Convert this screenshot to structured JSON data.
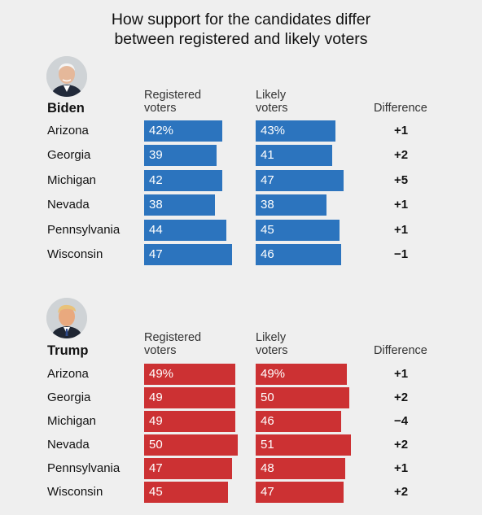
{
  "title_line1": "How support for the candidates differ",
  "title_line2": "between registered and likely voters",
  "chart_data": [
    {
      "type": "bar",
      "candidate": "Biden",
      "color": "#2c74be",
      "columns": {
        "registered_line1": "Registered",
        "registered_line2": "voters",
        "likely_line1": "Likely",
        "likely_line2": "voters",
        "difference": "Difference"
      },
      "categories": [
        "Arizona",
        "Georgia",
        "Michigan",
        "Nevada",
        "Pennsylvania",
        "Wisconsin"
      ],
      "series": [
        {
          "name": "Registered voters",
          "values": [
            42,
            39,
            42,
            38,
            44,
            47
          ]
        },
        {
          "name": "Likely voters",
          "values": [
            43,
            41,
            47,
            38,
            45,
            46
          ]
        }
      ],
      "value_labels_registered": [
        "42%",
        "39",
        "42",
        "38",
        "44",
        "47"
      ],
      "value_labels_likely": [
        "43%",
        "41",
        "47",
        "38",
        "45",
        "46"
      ],
      "difference": [
        "+1",
        "+2",
        "+5",
        "+1",
        "+1",
        "−1"
      ],
      "avatar_icon": "biden-portrait-icon"
    },
    {
      "type": "bar",
      "candidate": "Trump",
      "color": "#cc3133",
      "columns": {
        "registered_line1": "Registered",
        "registered_line2": "voters",
        "likely_line1": "Likely",
        "likely_line2": "voters",
        "difference": "Difference"
      },
      "categories": [
        "Arizona",
        "Georgia",
        "Michigan",
        "Nevada",
        "Pennsylvania",
        "Wisconsin"
      ],
      "series": [
        {
          "name": "Registered voters",
          "values": [
            49,
            49,
            49,
            50,
            47,
            45
          ]
        },
        {
          "name": "Likely voters",
          "values": [
            49,
            50,
            46,
            51,
            48,
            47
          ]
        }
      ],
      "value_labels_registered": [
        "49%",
        "49",
        "49",
        "50",
        "47",
        "45"
      ],
      "value_labels_likely": [
        "49%",
        "50",
        "46",
        "51",
        "48",
        "47"
      ],
      "difference": [
        "+1",
        "+2",
        "−4",
        "+2",
        "+1",
        "+2"
      ],
      "avatar_icon": "trump-portrait-icon"
    }
  ]
}
